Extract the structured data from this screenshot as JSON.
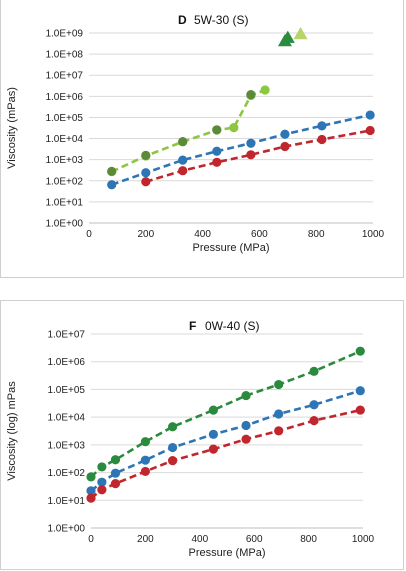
{
  "chart_data": [
    {
      "type": "scatter",
      "panel_label": "D",
      "title": "5W-30 (S)",
      "xlabel": "Pressure (MPa)",
      "ylabel": "Viscosity (mPas)",
      "xlim": [
        0,
        1000
      ],
      "x_ticks": [
        0,
        200,
        400,
        600,
        800,
        1000
      ],
      "y_scale": "log",
      "ylim": [
        1,
        1000000000
      ],
      "y_ticks": [
        1,
        10,
        100,
        1000,
        10000,
        100000,
        1000000,
        10000000,
        100000000,
        1000000000
      ],
      "y_tick_labels": [
        "1.0E+00",
        "1.0E+01",
        "1.0E+02",
        "1.0E+03",
        "1.0E+04",
        "1.0E+05",
        "1.0E+06",
        "1.0E+07",
        "1.0E+08",
        "1.0E+09"
      ],
      "grid": true,
      "series": [
        {
          "color": "#2e75b6",
          "marker": "circle",
          "line": "dashed",
          "x": [
            80,
            200,
            330,
            450,
            570,
            690,
            820,
            990
          ],
          "y": [
            65,
            240,
            950,
            2500,
            6000,
            16000,
            40000,
            130000
          ]
        },
        {
          "color": "#c0262d",
          "marker": "circle",
          "line": "dashed",
          "x": [
            200,
            330,
            450,
            570,
            690,
            820,
            990
          ],
          "y": [
            90,
            300,
            750,
            1700,
            4200,
            9000,
            24000
          ]
        },
        {
          "color": "#8dc641",
          "marker": "circle",
          "line": "dashed",
          "x": [
            80,
            200,
            330,
            450,
            510,
            570,
            620
          ],
          "y": [
            270,
            1500,
            7000,
            25000,
            33000,
            1100000,
            2000000
          ]
        },
        {
          "color": "#5a8a3a",
          "marker": "circle",
          "line": "none",
          "x": [
            80,
            200,
            330,
            450,
            570
          ],
          "y": [
            280,
            1600,
            7200,
            26000,
            1200000
          ]
        },
        {
          "color": "#2a8a3e",
          "marker": "triangle",
          "line": "none",
          "x": [
            690,
            700
          ],
          "y": [
            420000000,
            600000000
          ]
        },
        {
          "color": "#b5d46a",
          "marker": "triangle",
          "line": "none",
          "x": [
            745
          ],
          "y": [
            900000000
          ]
        }
      ]
    },
    {
      "type": "scatter",
      "panel_label": "F",
      "title": "0W-40 (S)",
      "xlabel": "Pressure (MPa)",
      "ylabel": "Viscosity (log) mPas",
      "xlim": [
        0,
        1000
      ],
      "x_ticks": [
        0,
        200,
        400,
        600,
        800,
        1000
      ],
      "y_scale": "log",
      "ylim": [
        1,
        10000000
      ],
      "y_ticks": [
        1,
        10,
        100,
        1000,
        10000,
        100000,
        1000000,
        10000000
      ],
      "y_tick_labels": [
        "1.0E+00",
        "1.0E+01",
        "1.0E+02",
        "1.0E+03",
        "1.0E+04",
        "1.0E+05",
        "1.0E+06",
        "1.0E+07"
      ],
      "grid": true,
      "series": [
        {
          "color": "#2a8a3e",
          "marker": "circle",
          "line": "dashed",
          "x": [
            0,
            40,
            90,
            200,
            300,
            450,
            570,
            690,
            820,
            990
          ],
          "y": [
            70,
            160,
            290,
            1300,
            4500,
            18000,
            60000,
            150000,
            450000,
            2400000
          ]
        },
        {
          "color": "#2e75b6",
          "marker": "circle",
          "line": "dashed",
          "x": [
            0,
            40,
            90,
            200,
            300,
            450,
            570,
            690,
            820,
            990
          ],
          "y": [
            22,
            45,
            95,
            280,
            800,
            2400,
            5000,
            13000,
            28000,
            90000
          ]
        },
        {
          "color": "#c0262d",
          "marker": "circle",
          "line": "dashed",
          "x": [
            0,
            40,
            90,
            200,
            300,
            450,
            570,
            690,
            820,
            990
          ],
          "y": [
            12,
            24,
            40,
            110,
            270,
            700,
            1600,
            3200,
            7500,
            18000
          ]
        }
      ]
    }
  ]
}
